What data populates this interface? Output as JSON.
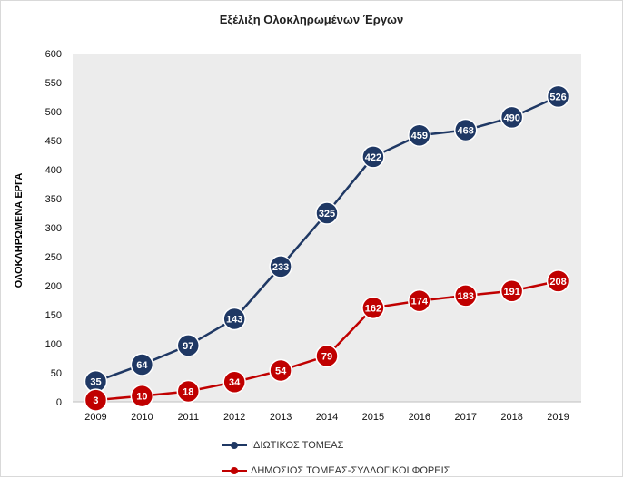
{
  "chart_data": {
    "type": "line",
    "title": "Εξέλιξη Ολοκληρωμένων  Έργων",
    "xlabel": "",
    "ylabel": "ΟΛΟΚΛΗΡΩΜΕΝΑ ΕΡΓΑ",
    "ylim": [
      0,
      600
    ],
    "yticks": [
      0,
      50,
      100,
      150,
      200,
      250,
      300,
      350,
      400,
      450,
      500,
      550,
      600
    ],
    "grid": false,
    "legend_position": "bottom",
    "categories": [
      "2009",
      "2010",
      "2011",
      "2012",
      "2013",
      "2014",
      "2015",
      "2016",
      "2017",
      "2018",
      "2019"
    ],
    "series": [
      {
        "name": "ΙΔΙΩΤΙΚΟΣ ΤΟΜΕΑΣ",
        "color": "#1f3864",
        "values": [
          35,
          64,
          97,
          143,
          233,
          325,
          422,
          459,
          468,
          490,
          526
        ]
      },
      {
        "name": "ΔΗΜΟΣΙΟΣ ΤΟΜΕΑΣ-ΣΥΛΛΟΓΙΚΟΙ ΦΟΡΕΙΣ",
        "color": "#c00000",
        "values": [
          3,
          10,
          18,
          34,
          54,
          79,
          162,
          174,
          183,
          191,
          208
        ]
      }
    ],
    "plot_background": "#ececec"
  }
}
